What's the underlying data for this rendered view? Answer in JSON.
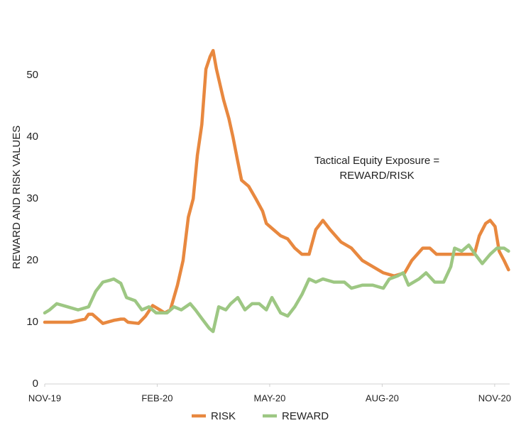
{
  "chart_data": {
    "type": "line",
    "y_label": "REWARD AND RISK VALUES",
    "annotation": [
      "Tactical Equity Exposure =",
      "REWARD/RISK"
    ],
    "xlim": [
      0,
      12.4
    ],
    "xticks": [
      {
        "value": 0,
        "label": "NOV-19"
      },
      {
        "value": 3,
        "label": "FEB-20"
      },
      {
        "value": 6,
        "label": "MAY-20"
      },
      {
        "value": 9,
        "label": "AUG-20"
      },
      {
        "value": 12,
        "label": "NOV-20"
      }
    ],
    "ylim": [
      0,
      55
    ],
    "yticks": [
      0,
      10,
      20,
      30,
      40,
      50
    ],
    "legend": "bottom",
    "series": [
      {
        "name": "RISK",
        "color": "#e8883f",
        "x": [
          0,
          0.7,
          1.08,
          1.17,
          1.27,
          1.46,
          1.55,
          1.84,
          2.03,
          2.12,
          2.22,
          2.5,
          2.69,
          2.88,
          3.07,
          3.2,
          3.35,
          3.54,
          3.69,
          3.83,
          3.96,
          4.07,
          4.19,
          4.3,
          4.41,
          4.49,
          4.58,
          4.77,
          4.91,
          5.02,
          5.15,
          5.25,
          5.44,
          5.63,
          5.81,
          5.91,
          6.1,
          6.29,
          6.48,
          6.67,
          6.86,
          7.05,
          7.23,
          7.42,
          7.61,
          7.9,
          8.18,
          8.47,
          8.75,
          9.03,
          9.32,
          9.6,
          9.79,
          10.08,
          10.27,
          10.45,
          10.74,
          11.12,
          11.46,
          11.59,
          11.76,
          11.88,
          12.01,
          12.12,
          12.25,
          12.37
        ],
        "values": [
          10,
          10,
          10.5,
          11.3,
          11.3,
          10.3,
          9.8,
          10.3,
          10.5,
          10.5,
          10,
          9.8,
          11,
          12.7,
          12,
          11.5,
          12,
          16,
          20,
          27,
          30,
          37,
          42,
          51,
          53,
          54,
          51,
          46,
          43,
          40,
          36,
          33,
          32,
          30,
          28,
          26,
          25,
          24,
          23.5,
          22,
          21,
          21,
          25,
          26.5,
          25,
          23,
          22,
          20,
          19,
          18,
          17.5,
          18,
          20,
          22,
          22,
          21,
          21,
          21,
          21,
          24,
          26,
          26.5,
          25.5,
          21.5,
          20,
          18.5
        ]
      },
      {
        "name": "REWARD",
        "color": "#9dc783",
        "x": [
          0,
          0.13,
          0.32,
          0.61,
          0.89,
          1.17,
          1.36,
          1.55,
          1.74,
          1.84,
          2.03,
          2.18,
          2.41,
          2.59,
          2.78,
          2.97,
          3.26,
          3.45,
          3.64,
          3.88,
          4.02,
          4.2,
          4.39,
          4.49,
          4.64,
          4.83,
          4.96,
          5.15,
          5.34,
          5.53,
          5.72,
          5.91,
          6.06,
          6.29,
          6.48,
          6.67,
          6.86,
          7.05,
          7.23,
          7.42,
          7.71,
          7.99,
          8.18,
          8.47,
          8.75,
          9.03,
          9.19,
          9.41,
          9.56,
          9.7,
          9.98,
          10.17,
          10.4,
          10.64,
          10.83,
          10.93,
          11.12,
          11.31,
          11.48,
          11.67,
          11.88,
          12.06,
          12.25,
          12.37
        ],
        "values": [
          11.5,
          12,
          13,
          12.5,
          12,
          12.5,
          15,
          16.5,
          16.8,
          17,
          16.3,
          14,
          13.5,
          12,
          12.5,
          11.5,
          11.5,
          12.5,
          12,
          13,
          12,
          10.5,
          9,
          8.5,
          12.5,
          12,
          13,
          14,
          12,
          13,
          13,
          12,
          14,
          11.5,
          11,
          12.5,
          14.5,
          17,
          16.5,
          17,
          16.5,
          16.5,
          15.5,
          16,
          16,
          15.5,
          17,
          17.5,
          18,
          16,
          17,
          18,
          16.5,
          16.5,
          19,
          22,
          21.5,
          22.5,
          21,
          19.5,
          21,
          22,
          22,
          21.5
        ]
      }
    ]
  }
}
